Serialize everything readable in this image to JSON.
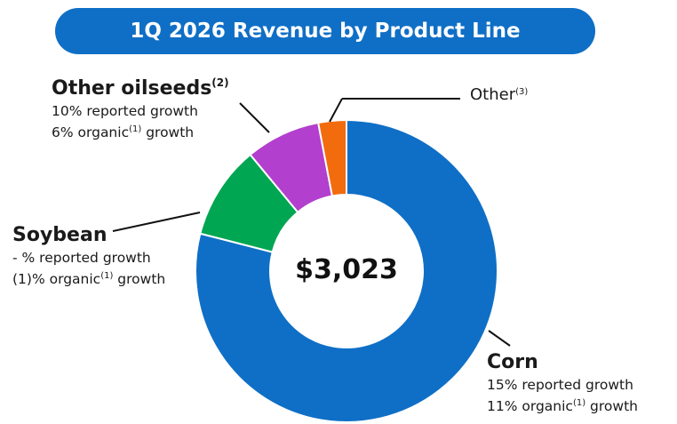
{
  "title": "1Q 2026 Revenue by Product Line",
  "center_value": "$3,023",
  "chart_data": {
    "type": "pie",
    "title": "1Q 2026 Revenue by Product Line",
    "total_label": "$3,023",
    "categories": [
      "Corn",
      "Soybean",
      "Other oilseeds",
      "Other"
    ],
    "values": [
      79,
      10,
      8,
      3
    ],
    "colors": [
      "#0f6fc6",
      "#00a651",
      "#b23fcd",
      "#f26c0d"
    ]
  },
  "labels": {
    "corn": {
      "name": "Corn",
      "line1": "15% reported growth",
      "line2_pre": "11% organic",
      "line2_sup": "(1)",
      "line2_post": " growth"
    },
    "soybean": {
      "name": "Soybean",
      "line1": "- % reported growth",
      "line2_pre": "(1)% organic",
      "line2_sup": "(1)",
      "line2_post": " growth"
    },
    "oilseeds": {
      "name": "Other oilseeds",
      "name_sup": "(2)",
      "line1": "10% reported growth",
      "line2_pre": "6% organic",
      "line2_sup": "(1)",
      "line2_post": " growth"
    },
    "other": {
      "name": "Other",
      "name_sup": "(3)"
    }
  }
}
